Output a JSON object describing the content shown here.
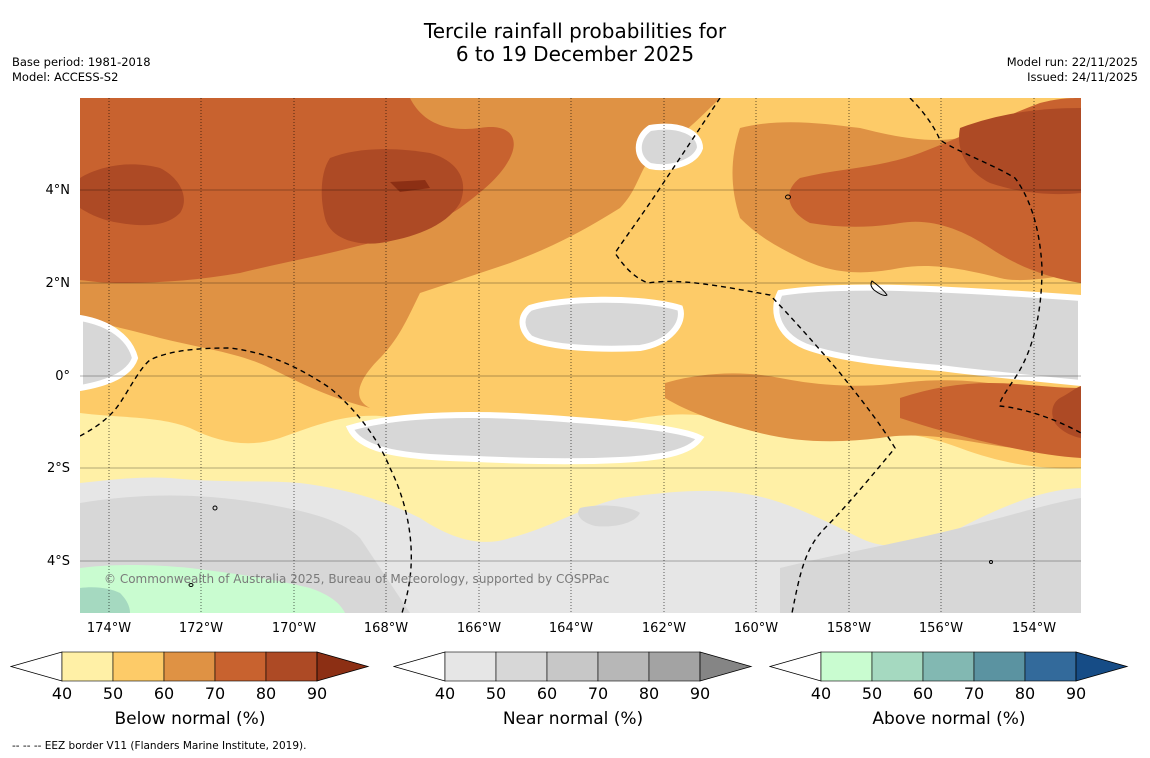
{
  "title": {
    "line1": "Tercile rainfall probabilities for",
    "line2": "6 to 19 December 2025"
  },
  "meta": {
    "base_period": "Base period: 1981-2018",
    "model": "Model: ACCESS-S2",
    "model_run": "Model run: 22/11/2025",
    "issued": "Issued: 24/11/2025"
  },
  "map": {
    "copyright": "© Commonwealth of Australia 2025, Bureau of Meteorology, supported by COSPPac",
    "lat_labels": [
      "4°N",
      "2°N",
      "0°",
      "2°S",
      "4°S"
    ],
    "lon_labels": [
      "174°W",
      "172°W",
      "170°W",
      "168°W",
      "166°W",
      "164°W",
      "162°W",
      "160°W",
      "158°W",
      "156°W",
      "154°W"
    ]
  },
  "colorbars": [
    {
      "title": "Below normal (%)",
      "ticks": [
        "40",
        "50",
        "60",
        "70",
        "80",
        "90"
      ],
      "colors": [
        "#fff0a6",
        "#fdcb68",
        "#df9244",
        "#c8622f",
        "#ad4a25",
        "#8c2f14"
      ]
    },
    {
      "title": "Near normal (%)",
      "ticks": [
        "40",
        "50",
        "60",
        "70",
        "80",
        "90"
      ],
      "colors": [
        "#e6e6e6",
        "#d7d7d7",
        "#c7c7c7",
        "#b7b7b7",
        "#a3a3a3",
        "#858585"
      ]
    },
    {
      "title": "Above normal (%)",
      "ticks": [
        "40",
        "50",
        "60",
        "70",
        "80",
        "90"
      ],
      "colors": [
        "#c9fcd0",
        "#a5d9c0",
        "#82b8b2",
        "#5b93a1",
        "#336a9b",
        "#164c86"
      ]
    }
  ],
  "footnote": "--  --  -- EEZ border V11 (Flanders Marine Institute, 2019).",
  "colors": {
    "white_gap": "#ffffff",
    "grid": "#000000",
    "eez": "#000000"
  }
}
